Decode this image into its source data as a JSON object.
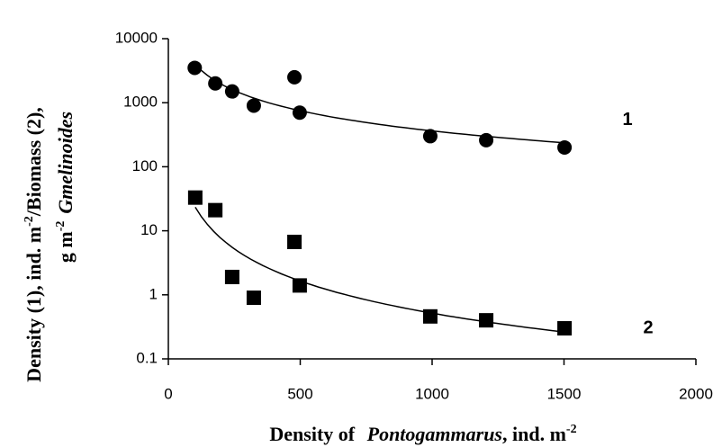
{
  "chart_data": {
    "type": "scatter",
    "x_label": [
      {
        "text": "Density of "
      },
      {
        "text": "Pontogammarus",
        "italic": true
      },
      {
        "text": ", ind. m"
      },
      {
        "text": "-2",
        "sup": true
      }
    ],
    "y_label": [
      [
        {
          "text": "Density (1), ind. m"
        },
        {
          "text": "-2",
          "sup": true
        },
        {
          "text": "/Biomass (2),"
        }
      ],
      [
        {
          "text": "g m"
        },
        {
          "text": "-2",
          "sup": true
        },
        {
          "text": "Gmelinoides",
          "italic": true
        }
      ]
    ],
    "xlim": [
      0,
      2000
    ],
    "xticks": [
      0,
      500,
      1000,
      1500,
      2000
    ],
    "ylim": [
      0.1,
      10000
    ],
    "yticks": [
      0.1,
      1,
      10,
      100,
      1000,
      10000
    ],
    "log_y": true,
    "grid": false,
    "trendline": "power",
    "series": [
      {
        "name": "1",
        "marker": "circle",
        "color": "#000000",
        "x": [
          100,
          178,
          242,
          324,
          478,
          498,
          993,
          1205,
          1502
        ],
        "values": [
          3500,
          2000,
          1500,
          900,
          2500,
          700,
          300,
          260,
          200
        ]
      },
      {
        "name": "2",
        "marker": "square",
        "color": "#000000",
        "x": [
          102,
          178,
          242,
          324,
          478,
          498,
          993,
          1205,
          1502
        ],
        "values": [
          33,
          21,
          1.9,
          0.9,
          6.7,
          1.4,
          0.46,
          0.4,
          0.3
        ]
      }
    ]
  }
}
